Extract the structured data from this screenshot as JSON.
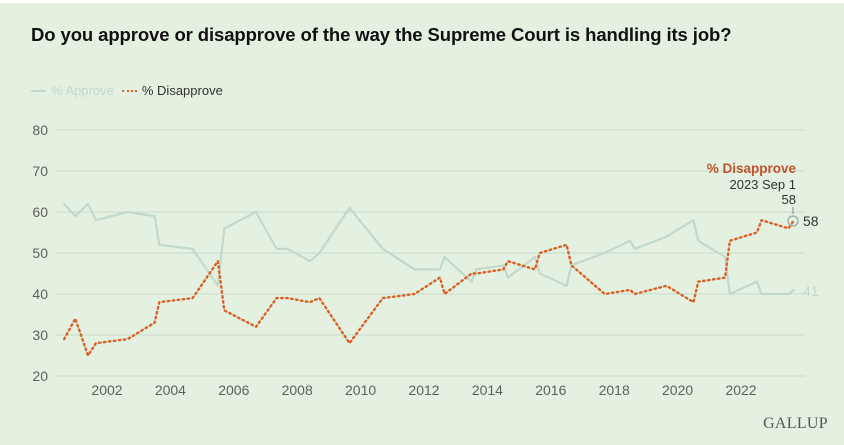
{
  "title": "Do you approve or disapprove of the way the Supreme Court is handling its job?",
  "legend": [
    {
      "label": "% Approve",
      "color": "#c1d9cc",
      "style": "solid",
      "state": "inactive"
    },
    {
      "label": "% Disapprove",
      "color": "#d9622b",
      "style": "dotted",
      "state": "active"
    }
  ],
  "tooltip": {
    "series": "% Disapprove",
    "date": "2023 Sep 1",
    "value": "58"
  },
  "end_labels": {
    "disapprove": "58",
    "approve": "41"
  },
  "brand": "GALLUP",
  "colors": {
    "background": "#e4f1e1",
    "grid": "#c9dccb",
    "approve": "#c1d9cc",
    "disapprove": "#d9622b",
    "tooltip_title": "#c0522b"
  },
  "chart_data": {
    "type": "line",
    "title": "Do you approve or disapprove of the way the Supreme Court is handling its job?",
    "xlabel": "",
    "ylabel": "",
    "ylim": [
      20,
      80
    ],
    "yticks": [
      20,
      30,
      40,
      50,
      60,
      70,
      80
    ],
    "xlim": [
      2000.35,
      2023.8
    ],
    "xticks": [
      2002,
      2004,
      2006,
      2008,
      2010,
      2012,
      2014,
      2016,
      2018,
      2020,
      2022
    ],
    "grid": true,
    "legend_position": "top-left",
    "x": [
      2000.65,
      2001.0,
      2001.4,
      2001.65,
      2002.65,
      2003.5,
      2003.65,
      2004.7,
      2005.5,
      2005.7,
      2006.7,
      2007.35,
      2007.7,
      2008.4,
      2008.7,
      2009.65,
      2010.7,
      2011.7,
      2012.5,
      2012.65,
      2013.5,
      2013.65,
      2014.5,
      2014.65,
      2015.5,
      2015.65,
      2016.5,
      2016.65,
      2017.7,
      2018.5,
      2018.65,
      2019.65,
      2020.5,
      2020.65,
      2021.5,
      2021.65,
      2022.5,
      2022.65,
      2023.5,
      2023.67
    ],
    "series": [
      {
        "name": "% Approve",
        "values": [
          62,
          59,
          62,
          58,
          60,
          59,
          52,
          51,
          42,
          56,
          60,
          51,
          51,
          48,
          50,
          61,
          51,
          46,
          46,
          49,
          43,
          46,
          47,
          44,
          49,
          45,
          42,
          47,
          50,
          53,
          51,
          54,
          58,
          53,
          49,
          40,
          43,
          40,
          40,
          41
        ]
      },
      {
        "name": "% Disapprove",
        "values": [
          29,
          34,
          25,
          28,
          29,
          33,
          38,
          39,
          48,
          36,
          32,
          39,
          39,
          38,
          39,
          28,
          39,
          40,
          44,
          40,
          45,
          45,
          46,
          48,
          46,
          50,
          52,
          47,
          40,
          41,
          40,
          42,
          38,
          43,
          44,
          53,
          55,
          58,
          56,
          58
        ]
      }
    ],
    "annotations": [
      {
        "series": "% Disapprove",
        "date": "2023 Sep 1",
        "value": 58
      },
      {
        "series": "% Approve",
        "end_value": 41
      }
    ]
  }
}
